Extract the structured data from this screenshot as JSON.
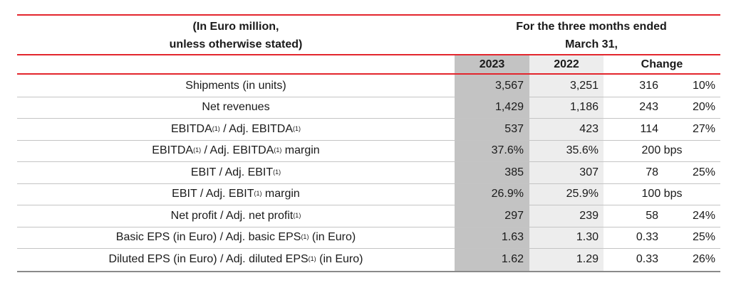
{
  "header": {
    "unit_line1": "(In Euro million,",
    "unit_line2": "unless otherwise stated)",
    "period_line1": "For the three months ended",
    "period_line2": "March 31,",
    "col_2023": "2023",
    "col_2022": "2022",
    "col_change": "Change"
  },
  "footnote_mark": "(1)",
  "rows": [
    {
      "label": "Shipments (in units)",
      "v2023": "3,567",
      "v2022": "3,251",
      "change": "316",
      "pct": "10%"
    },
    {
      "label": "Net revenues",
      "v2023": "1,429",
      "v2022": "1,186",
      "change": "243",
      "pct": "20%"
    },
    {
      "label_a": "EBITDA",
      "label_b": " / Adj. EBITDA",
      "v2023": "537",
      "v2022": "423",
      "change": "114",
      "pct": "27%"
    },
    {
      "label_a": "EBITDA",
      "label_b": " / Adj. EBITDA",
      "label_c": " margin",
      "v2023": "37.6%",
      "v2022": "35.6%",
      "change": "200 bps"
    },
    {
      "label_a": "EBIT / Adj. EBIT",
      "v2023": "385",
      "v2022": "307",
      "change": "78",
      "pct": "25%"
    },
    {
      "label_a": "EBIT / Adj. EBIT",
      "label_c": " margin",
      "v2023": "26.9%",
      "v2022": "25.9%",
      "change": "100 bps"
    },
    {
      "label_a": "Net profit / Adj. net profit",
      "v2023": "297",
      "v2022": "239",
      "change": "58",
      "pct": "24%"
    },
    {
      "label_a": "Basic EPS (in Euro) / Adj. basic EPS",
      "label_c": " (in Euro)",
      "v2023": "1.63",
      "v2022": "1.30",
      "change": "0.33",
      "pct": "25%"
    },
    {
      "label_a": "Diluted EPS (in Euro) / Adj. diluted EPS",
      "label_c": " (in Euro)",
      "v2023": "1.62",
      "v2022": "1.29",
      "change": "0.33",
      "pct": "26%"
    }
  ],
  "colors": {
    "accent_red": "#e3262d",
    "shade_2023": "#c3c3c3",
    "shade_2022": "#ededed"
  }
}
